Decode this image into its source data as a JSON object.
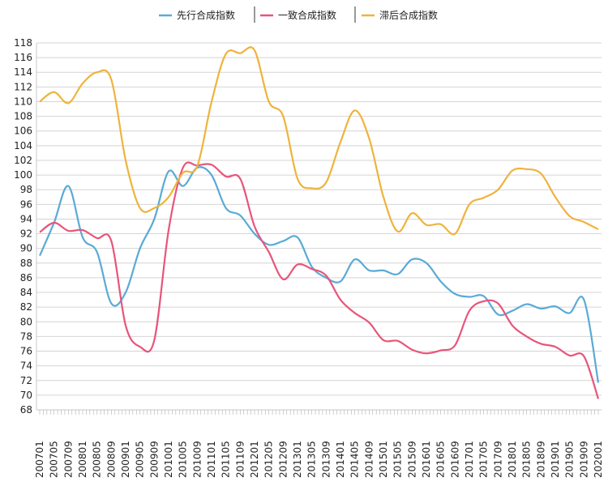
{
  "chart_data": {
    "type": "line",
    "title": "",
    "xlabel": "",
    "ylabel": "",
    "ylim": [
      68,
      118
    ],
    "ytick_step": 2,
    "grid": true,
    "legend_placement": "top-center",
    "x": [
      "2007-01",
      "2007-05",
      "2007-09",
      "2008-01",
      "2008-05",
      "2008-09",
      "2009-01",
      "2009-05",
      "2009-09",
      "2010-01",
      "2010-05",
      "2010-09",
      "2011-01",
      "2011-05",
      "2011-09",
      "2012-01",
      "2012-05",
      "2012-09",
      "2013-01",
      "2013-05",
      "2013-09",
      "2014-01",
      "2014-05",
      "2014-09",
      "2015-01",
      "2015-05",
      "2015-09",
      "2016-01",
      "2016-05",
      "2016-09",
      "2017-01",
      "2017-05",
      "2017-09",
      "2018-01",
      "2018-05",
      "2018-09",
      "2019-01",
      "2019-05",
      "2019-09",
      "2020-01"
    ],
    "tick_labels": [
      "200701",
      "200705",
      "200709",
      "200801",
      "200805",
      "200809",
      "200901",
      "200905",
      "200909",
      "201001",
      "201005",
      "201009",
      "201101",
      "201105",
      "201109",
      "201201",
      "201205",
      "201209",
      "201301",
      "201305",
      "201309",
      "201401",
      "201405",
      "201409",
      "201501",
      "201505",
      "201509",
      "201601",
      "201605",
      "201609",
      "201701",
      "201705",
      "201709",
      "201801",
      "201805",
      "201809",
      "201901",
      "201905",
      "201909",
      "202001"
    ],
    "series": [
      {
        "name": "先行合成指数",
        "color": "#5aaad6",
        "values": [
          89,
          93.5,
          98.5,
          91.5,
          89.5,
          82.5,
          84,
          90,
          94,
          100.5,
          98.5,
          101,
          100,
          95.5,
          94.5,
          92,
          90.5,
          91,
          91.5,
          87.5,
          86,
          85.5,
          88.5,
          87,
          87,
          86.5,
          88.5,
          88,
          85.5,
          83.8,
          83.4,
          83.5,
          81,
          81.5,
          82.4,
          81.8,
          82.1,
          81.2,
          83,
          71.7
        ]
      },
      {
        "name": "一致合成指数",
        "color": "#e8557a",
        "values": [
          92.2,
          93.5,
          92.4,
          92.5,
          91.4,
          91,
          79.5,
          76.6,
          77.5,
          92.5,
          101,
          101.3,
          101.4,
          99.8,
          99.5,
          93,
          89.5,
          85.8,
          87.8,
          87.2,
          86.3,
          83,
          81.2,
          79.9,
          77.5,
          77.4,
          76.2,
          75.7,
          76.1,
          76.8,
          81.5,
          82.8,
          82.5,
          79.5,
          78,
          77,
          76.6,
          75.4,
          75.3,
          69.5
        ]
      },
      {
        "name": "滞后合成指数",
        "color": "#efb33c",
        "values": [
          110,
          111.3,
          109.8,
          112.5,
          114,
          113,
          102,
          95.5,
          95.5,
          97,
          100.3,
          101.2,
          110,
          116.5,
          116.6,
          117,
          110,
          108,
          99.5,
          98.2,
          99,
          104.5,
          108.8,
          105,
          97,
          92.3,
          94.8,
          93.2,
          93.3,
          92,
          96,
          96.9,
          98,
          100.6,
          100.8,
          100.2,
          97,
          94.4,
          93.6,
          92.6
        ]
      }
    ]
  }
}
